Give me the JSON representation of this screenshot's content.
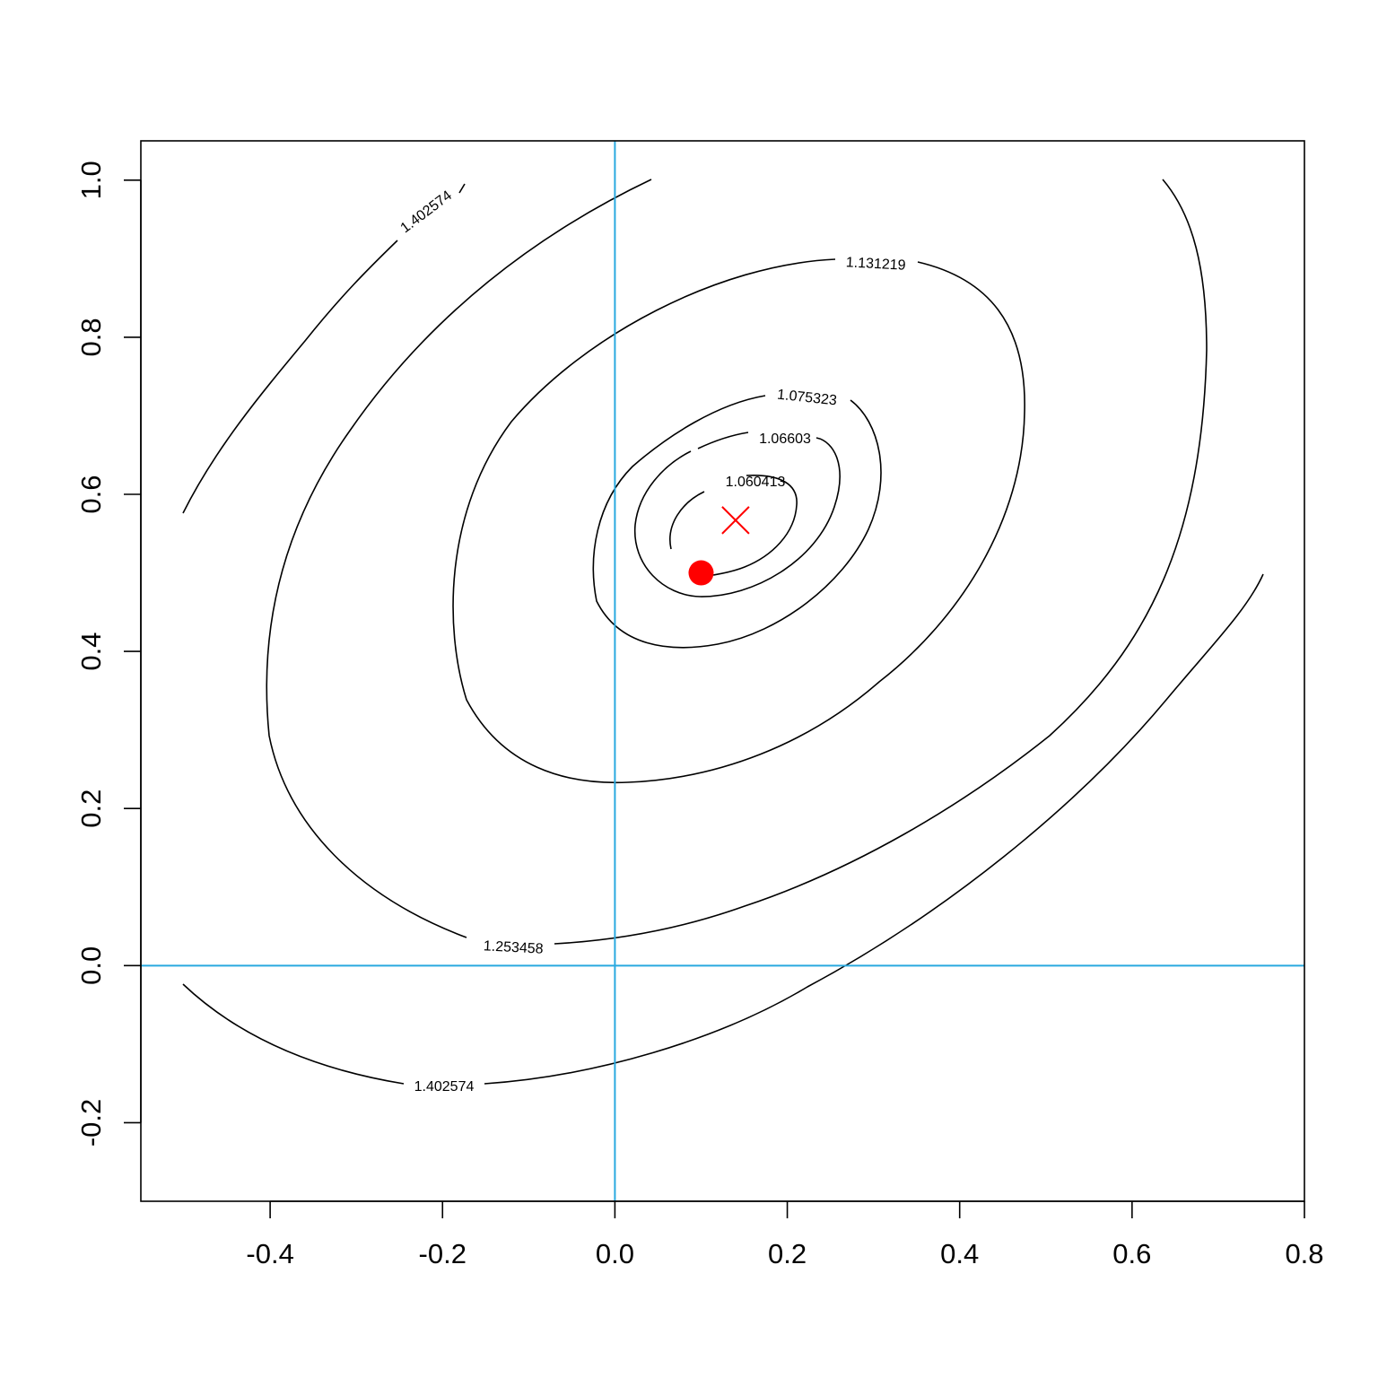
{
  "chart_data": {
    "type": "contour",
    "title": "",
    "xlabel": "",
    "ylabel": "",
    "xlim": [
      -0.55,
      0.8
    ],
    "ylim": [
      -0.3,
      1.05
    ],
    "x_ticks": [
      "-0.4",
      "-0.2",
      "0.0",
      "0.2",
      "0.4",
      "0.6",
      "0.8"
    ],
    "y_ticks": [
      "-0.2",
      "0.0",
      "0.2",
      "0.4",
      "0.6",
      "0.8",
      "1.0"
    ],
    "grid": false,
    "reference_lines": {
      "color": "#29A9DF",
      "vertical_x": 0.0,
      "horizontal_y": 0.0
    },
    "contour_levels": [
      {
        "level": 1.060413,
        "label": "1.060413"
      },
      {
        "level": 1.06603,
        "label": "1.06603"
      },
      {
        "level": 1.075323,
        "label": "1.075323"
      },
      {
        "level": 1.131219,
        "label": "1.131219"
      },
      {
        "level": 1.253458,
        "label": "1.253458"
      },
      {
        "level": 1.402574,
        "label": "1.402574"
      }
    ],
    "points": [
      {
        "name": "start",
        "x": 0.1,
        "y": 0.5,
        "marker": "filled-circle",
        "color": "#FF0000"
      },
      {
        "name": "minimum",
        "x": 0.14,
        "y": 0.567,
        "marker": "cross",
        "color": "#FF0000"
      }
    ]
  }
}
